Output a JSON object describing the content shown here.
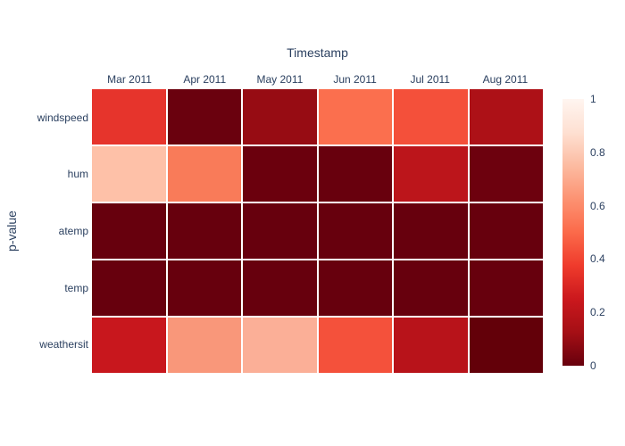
{
  "chart_data": {
    "type": "heatmap",
    "title": "Timestamp",
    "xlabel": "Timestamp",
    "ylabel": "p-value",
    "x_categories": [
      "Mar 2011",
      "Apr 2011",
      "May 2011",
      "Jun 2011",
      "Jul 2011",
      "Aug 2011"
    ],
    "y_categories": [
      "windspeed",
      "hum",
      "atemp",
      "temp",
      "weathersit"
    ],
    "series": [
      {
        "name": "windspeed",
        "values": [
          0.35,
          0.01,
          0.09,
          0.52,
          0.43,
          0.14
        ],
        "colors": [
          "#e6342c",
          "#6a010e",
          "#970c13",
          "#fb6f4e",
          "#f4503a",
          "#ad1117"
        ]
      },
      {
        "name": "hum",
        "values": [
          0.77,
          0.56,
          0.01,
          0.0,
          0.2,
          0.02
        ],
        "colors": [
          "#fec1a8",
          "#f97b59",
          "#6b000d",
          "#68000d",
          "#bc151b",
          "#6d010e"
        ]
      },
      {
        "name": "atemp",
        "values": [
          0.0,
          0.0,
          0.0,
          0.0,
          0.0,
          0.0
        ],
        "colors": [
          "#67000d",
          "#67000d",
          "#67000d",
          "#67000d",
          "#67000d",
          "#67000d"
        ]
      },
      {
        "name": "temp",
        "values": [
          0.0,
          0.0,
          0.0,
          0.0,
          0.0,
          0.0
        ],
        "colors": [
          "#67000d",
          "#67000d",
          "#67000d",
          "#67000d",
          "#67000d",
          "#67000d"
        ]
      },
      {
        "name": "weathersit",
        "values": [
          0.25,
          0.62,
          0.68,
          0.42,
          0.19,
          0.0
        ],
        "colors": [
          "#c8171d",
          "#f9977a",
          "#fbaf97",
          "#f4513b",
          "#b8131a",
          "#630009"
        ]
      }
    ],
    "colorbar": {
      "min": 0,
      "max": 1,
      "tick_values": [
        1,
        0.8,
        0.6,
        0.4,
        0.2,
        0
      ],
      "tick_labels": [
        "1",
        "0.8",
        "0.6",
        "0.4",
        "0.2",
        "0"
      ],
      "colorscale_top_to_bottom": [
        "#fff5f0",
        "#fee0d2",
        "#fcbba1",
        "#fc9272",
        "#fb6a4a",
        "#ef3b2c",
        "#cb181d",
        "#a50f15",
        "#67000d"
      ]
    },
    "layout": {
      "grid_gap_color": "#ffffff",
      "background_color": "#ffffff",
      "text_color": "#2a3f5f",
      "legend_position": "right-colorbar",
      "x_axis_side": "top"
    }
  }
}
